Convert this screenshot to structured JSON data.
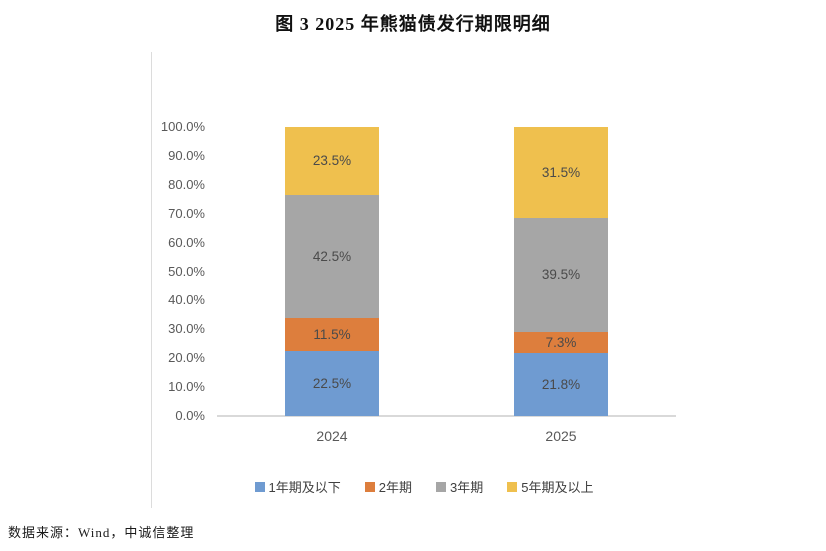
{
  "figure": {
    "title": "图 3  2025 年熊猫债发行期限明细",
    "source": "数据来源：Wind，中诚信整理"
  },
  "chart_data": {
    "type": "bar",
    "stacked": true,
    "orientation": "vertical",
    "title": "图 3  2025 年熊猫债发行期限明细",
    "categories": [
      "2024",
      "2025"
    ],
    "series": [
      {
        "name": "1年期及以下",
        "color": "#6f9bd1",
        "values": [
          22.5,
          21.8
        ]
      },
      {
        "name": "2年期",
        "color": "#dd7e3d",
        "values": [
          11.5,
          7.3
        ]
      },
      {
        "name": "3年期",
        "color": "#a6a6a6",
        "values": [
          42.5,
          39.5
        ]
      },
      {
        "name": "5年期及以上",
        "color": "#efc04e",
        "values": [
          23.5,
          31.5
        ]
      }
    ],
    "data_labels": {
      "2024": [
        "22.5%",
        "11.5%",
        "42.5%",
        "23.5%"
      ],
      "2025": [
        "21.8%",
        "7.3%",
        "39.5%",
        "31.5%"
      ]
    },
    "xlabel": "",
    "ylabel": "",
    "ylim": [
      0,
      100
    ],
    "yticks": [
      "0.0%",
      "10.0%",
      "20.0%",
      "30.0%",
      "40.0%",
      "50.0%",
      "60.0%",
      "70.0%",
      "80.0%",
      "90.0%",
      "100.0%"
    ],
    "grid": false,
    "legend_position": "bottom",
    "axis_line_color": "#d9d9d9",
    "tick_label_color": "#595959",
    "data_label_color": "#4a4a4a"
  }
}
